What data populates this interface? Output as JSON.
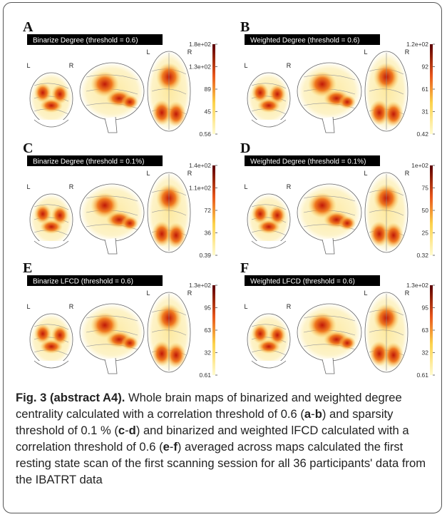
{
  "panels": [
    {
      "letter": "A",
      "title": "Binarize Degree (threshold = 0.6)",
      "orientation": [
        "L",
        "R",
        "L",
        "R"
      ],
      "colorbar_ticks": [
        "1.8e+02",
        "1.3e+02",
        "89",
        "45",
        "0.56"
      ]
    },
    {
      "letter": "B",
      "title": "Weighted Degree (threshold = 0.6)",
      "orientation": [
        "L",
        "R",
        "L",
        "R"
      ],
      "colorbar_ticks": [
        "1.2e+02",
        "92",
        "61",
        "31",
        "0.42"
      ]
    },
    {
      "letter": "C",
      "title": "Binarize Degree (threshold = 0.1%)",
      "orientation": [
        "L",
        "R",
        "L",
        "R"
      ],
      "colorbar_ticks": [
        "1.4e+02",
        "1.1e+02",
        "72",
        "36",
        "0.39"
      ]
    },
    {
      "letter": "D",
      "title": "Weighted Degree (threshold = 0.1%)",
      "orientation": [
        "L",
        "R",
        "L",
        "R"
      ],
      "colorbar_ticks": [
        "1e+02",
        "75",
        "50",
        "25",
        "0.32"
      ]
    },
    {
      "letter": "E",
      "title": "Binarize LFCD (threshold = 0.6)",
      "orientation": [
        "L",
        "R",
        "L",
        "R"
      ],
      "colorbar_ticks": [
        "1.3e+02",
        "95",
        "63",
        "32",
        "0.61"
      ]
    },
    {
      "letter": "F",
      "title": "Weighted LFCD (threshold = 0.6)",
      "orientation": [
        "L",
        "R",
        "L",
        "R"
      ],
      "colorbar_ticks": [
        "1.3e+02",
        "95",
        "63",
        "32",
        "0.61"
      ]
    }
  ],
  "caption": {
    "segments": [
      {
        "text": "Fig. 3 (abstract A4).",
        "bold": true
      },
      {
        "text": " Whole brain maps of binarized and weighted degree centrality calculated with a correlation threshold of 0.6 (",
        "bold": false
      },
      {
        "text": "a",
        "bold": true
      },
      {
        "text": "-",
        "bold": false
      },
      {
        "text": "b",
        "bold": true
      },
      {
        "text": ") and sparsity threshold of 0.1 % (",
        "bold": false
      },
      {
        "text": "c",
        "bold": true
      },
      {
        "text": "-",
        "bold": false
      },
      {
        "text": "d",
        "bold": true
      },
      {
        "text": ") and binarized and weighted lFCD calculated with a correlation threshold of 0.6 (",
        "bold": false
      },
      {
        "text": "e",
        "bold": true
      },
      {
        "text": "-",
        "bold": false
      },
      {
        "text": "f",
        "bold": true
      },
      {
        "text": ") averaged across maps calculated the first resting state scan of the first scanning session for all 36 participants' data from the IBATRT data",
        "bold": false
      }
    ]
  }
}
